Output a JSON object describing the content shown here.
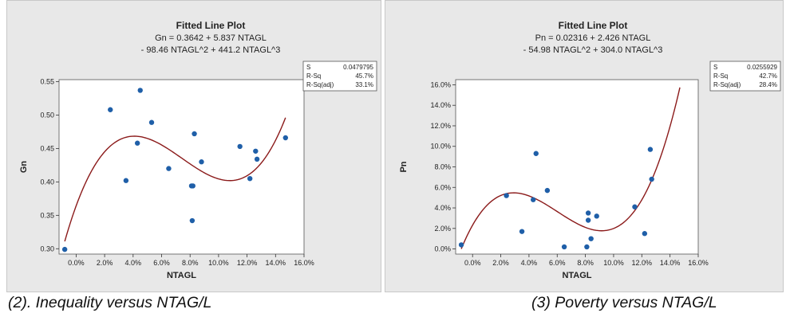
{
  "panels": [
    {
      "title": "Fitted Line Plot",
      "equation_line1": "Gn = 0.3642 + 5.837 NTAGL",
      "equation_line2": "- 98.46 NTAGL^2 + 441.2 NTAGL^3",
      "stats": [
        {
          "label": "S",
          "value": "0.0479795"
        },
        {
          "label": "R-Sq",
          "value": "45.7%"
        },
        {
          "label": "R-Sq(adj)",
          "value": "33.1%"
        }
      ],
      "caption": "(2). Inequality versus NTAG/L"
    },
    {
      "title": "Fitted Line Plot",
      "equation_line1": "Pn = 0.02316 + 2.426 NTAGL",
      "equation_line2": "- 54.98 NTAGL^2 + 304.0 NTAGL^3",
      "stats": [
        {
          "label": "S",
          "value": "0.0255929"
        },
        {
          "label": "R-Sq",
          "value": "42.7%"
        },
        {
          "label": "R-Sq(adj)",
          "value": "28.4%"
        }
      ],
      "caption": "(3) Poverty versus NTAG/L"
    }
  ],
  "colors": {
    "panel_bg": "#e8e8e8",
    "plot_bg": "#ffffff",
    "point": "#1f5fa8",
    "fit_line": "#8b1a1a",
    "text": "#222222"
  },
  "chart_data": [
    {
      "type": "scatter",
      "title": "Fitted Line Plot",
      "xlabel": "NTAGL",
      "ylabel": "Gn",
      "xlim": [
        -0.012,
        0.16
      ],
      "ylim": [
        0.292,
        0.553
      ],
      "x_ticks": [
        0.0,
        0.02,
        0.04,
        0.06,
        0.08,
        0.1,
        0.12,
        0.14,
        0.16
      ],
      "x_tick_labels": [
        "0.0%",
        "2.0%",
        "4.0%",
        "6.0%",
        "8.0%",
        "10.0%",
        "12.0%",
        "14.0%",
        "16.0%"
      ],
      "y_ticks": [
        0.3,
        0.35,
        0.4,
        0.45,
        0.5,
        0.55
      ],
      "y_tick_labels": [
        "0.30",
        "0.35",
        "0.40",
        "0.45",
        "0.50",
        "0.55"
      ],
      "x": [
        -0.008,
        0.024,
        0.035,
        0.043,
        0.045,
        0.053,
        0.065,
        0.081,
        0.082,
        0.0815,
        0.083,
        0.088,
        0.115,
        0.122,
        0.126,
        0.127,
        0.147
      ],
      "y": [
        0.299,
        0.508,
        0.402,
        0.458,
        0.537,
        0.489,
        0.42,
        0.394,
        0.394,
        0.342,
        0.472,
        0.43,
        0.453,
        0.405,
        0.446,
        0.434,
        0.466
      ],
      "fit": {
        "coefficients": [
          0.3642,
          5.837,
          -98.46,
          441.2
        ],
        "x_range": [
          -0.008,
          0.147
        ]
      },
      "grid": false,
      "legend": "none"
    },
    {
      "type": "scatter",
      "title": "Fitted Line Plot",
      "xlabel": "NTAGL",
      "ylabel": "Pn",
      "xlim": [
        -0.012,
        0.16
      ],
      "ylim": [
        -0.005,
        0.165
      ],
      "x_ticks": [
        0.0,
        0.02,
        0.04,
        0.06,
        0.08,
        0.1,
        0.12,
        0.14,
        0.16
      ],
      "x_tick_labels": [
        "0.0%",
        "2.0%",
        "4.0%",
        "6.0%",
        "8.0%",
        "10.0%",
        "12.0%",
        "14.0%",
        "16.0%"
      ],
      "y_ticks": [
        0.0,
        0.02,
        0.04,
        0.06,
        0.08,
        0.1,
        0.12,
        0.14,
        0.16
      ],
      "y_tick_labels": [
        "0.0%",
        "2.0%",
        "4.0%",
        "6.0%",
        "8.0%",
        "10.0%",
        "12.0%",
        "14.0%",
        "16.0%"
      ],
      "x": [
        -0.008,
        0.024,
        0.035,
        0.043,
        0.045,
        0.053,
        0.065,
        0.081,
        0.082,
        0.082,
        0.084,
        0.088,
        0.115,
        0.122,
        0.126,
        0.127
      ],
      "y": [
        0.004,
        0.052,
        0.017,
        0.048,
        0.093,
        0.057,
        0.002,
        0.002,
        0.028,
        0.035,
        0.01,
        0.032,
        0.041,
        0.015,
        0.097,
        0.068
      ],
      "fit": {
        "coefficients": [
          0.02316,
          2.426,
          -54.98,
          304.0
        ],
        "x_range": [
          -0.008,
          0.147
        ]
      },
      "grid": false,
      "legend": "none"
    }
  ]
}
